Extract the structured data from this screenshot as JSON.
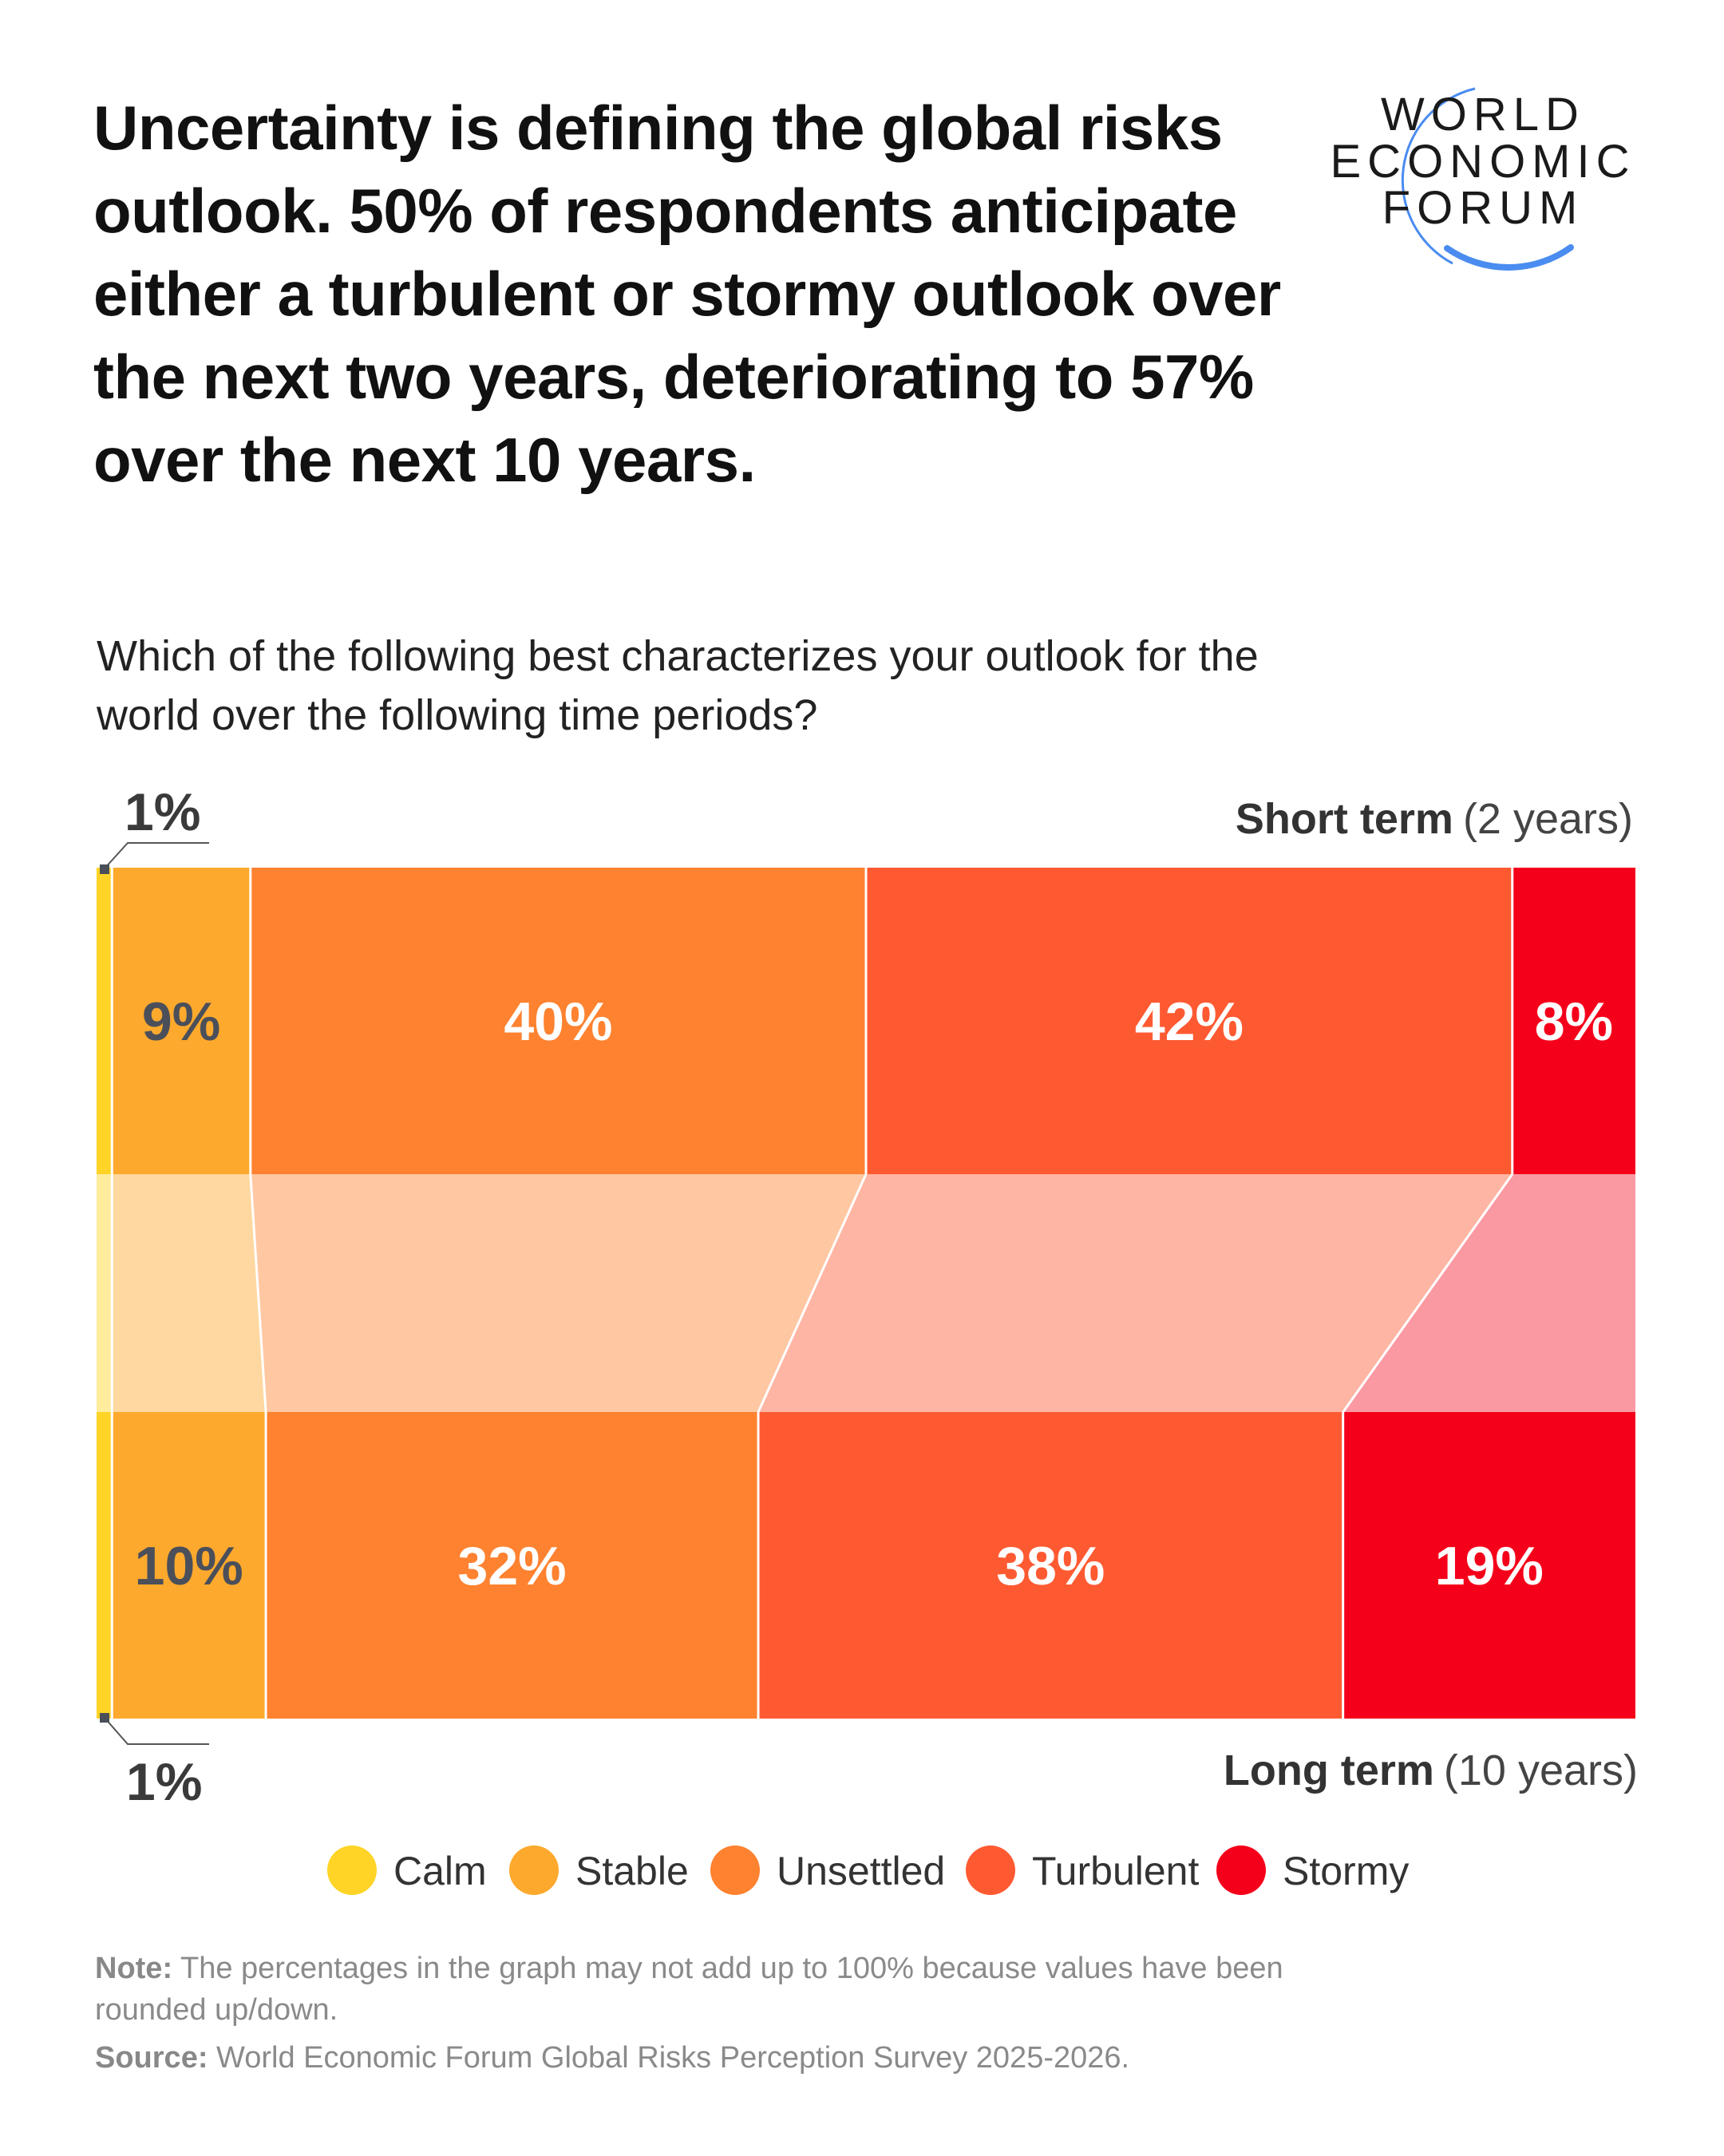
{
  "title": "Uncertainty is defining the global risks outlook. 50% of respondents anticipate either a turbulent or stormy outlook over the next two years, deteriorating to 57% over the next 10 years.",
  "logo": {
    "text": "WORLD ECONOMIC FORUM",
    "lines": [
      "WORLD",
      "ECONOMIC",
      "FORUM"
    ],
    "arc_color": "#4A8CF0"
  },
  "subtitle": "Which of the following best characterizes your outlook for the world over the following time periods?",
  "chart_data": {
    "type": "bar",
    "orientation": "horizontal-stacked-100",
    "categories": [
      "Calm",
      "Stable",
      "Unsettled",
      "Turbulent",
      "Stormy"
    ],
    "colors": [
      "#FFD426",
      "#FDA92D",
      "#FE8230",
      "#FE5A32",
      "#F5001A"
    ],
    "series": [
      {
        "name": "Short term",
        "suffix": "(2 years)",
        "values": [
          1,
          9,
          40,
          42,
          8
        ],
        "labels": [
          "1%",
          "9%",
          "40%",
          "42%",
          "8%"
        ]
      },
      {
        "name": "Long term",
        "suffix": "(10 years)",
        "values": [
          1,
          10,
          32,
          38,
          19
        ],
        "labels": [
          "1%",
          "10%",
          "32%",
          "38%",
          "19%"
        ]
      }
    ],
    "legend": {
      "placement": "bottom",
      "entries": [
        "Calm",
        "Stable",
        "Unsettled",
        "Turbulent",
        "Stormy"
      ]
    }
  },
  "notes": {
    "note_label": "Note:",
    "note_text": "The percentages in the graph may not add up to 100% because values have been rounded up/down.",
    "source_label": "Source:",
    "source_text": "World Economic Forum Global Risks Perception Survey 2025-2026."
  }
}
